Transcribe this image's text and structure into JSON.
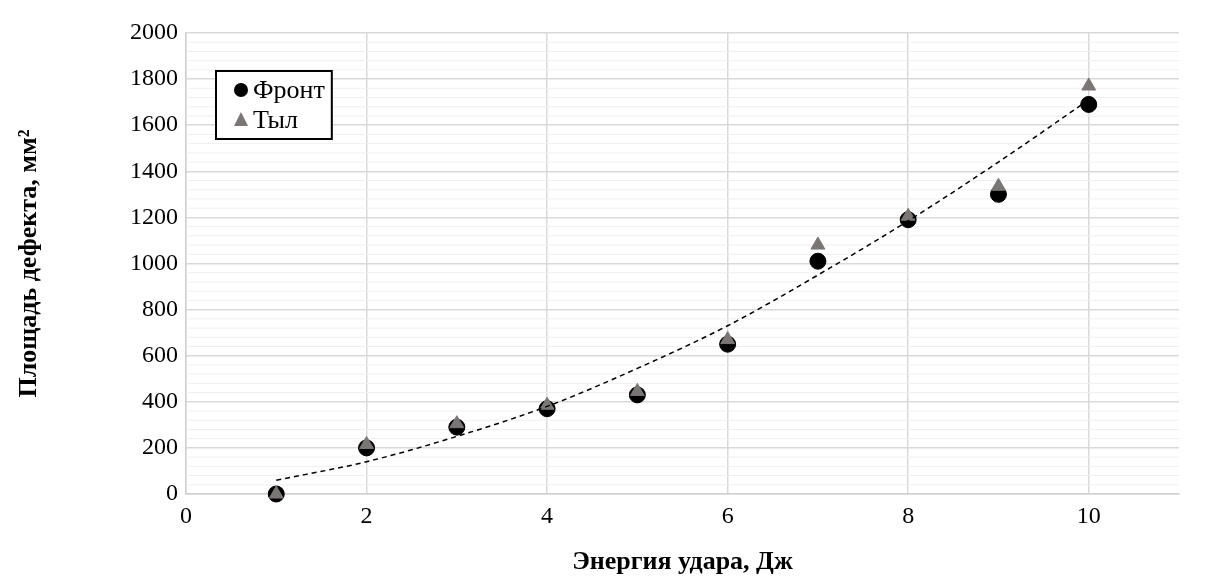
{
  "chart_data": {
    "type": "scatter",
    "xlabel": "Энергия удара, Дж",
    "ylabel": "Площадь дефекта, мм²",
    "xlim": [
      0,
      11
    ],
    "xticks": [
      0,
      2,
      4,
      6,
      8,
      10
    ],
    "ylim": [
      0,
      2000
    ],
    "yticks": [
      0,
      200,
      400,
      600,
      800,
      1000,
      1200,
      1400,
      1600,
      1800,
      2000
    ],
    "grid": true,
    "legend": "top left",
    "series": [
      {
        "name": "Фронт",
        "color": "#000000",
        "marker": "circle",
        "x": [
          1,
          2,
          3,
          4,
          5,
          6,
          7,
          8,
          9,
          10
        ],
        "values": [
          0,
          200,
          290,
          370,
          430,
          650,
          1010,
          1190,
          1300,
          1690
        ]
      },
      {
        "name": "Тыл",
        "color": "#7a7676",
        "marker": "triangle",
        "x": [
          1,
          2,
          3,
          4,
          5,
          6,
          7,
          8,
          9,
          10
        ],
        "values": [
          0,
          215,
          305,
          385,
          445,
          670,
          1080,
          1205,
          1335,
          1770
        ]
      },
      {
        "type": "line",
        "color": "#000000",
        "marker": "none",
        "line_style": "dashed",
        "x": [
          1,
          2,
          3,
          4,
          5,
          6,
          7,
          8,
          9,
          10
        ],
        "values": [
          60,
          140,
          250,
          380,
          545,
          730,
          950,
          1185,
          1440,
          1710
        ]
      }
    ]
  }
}
